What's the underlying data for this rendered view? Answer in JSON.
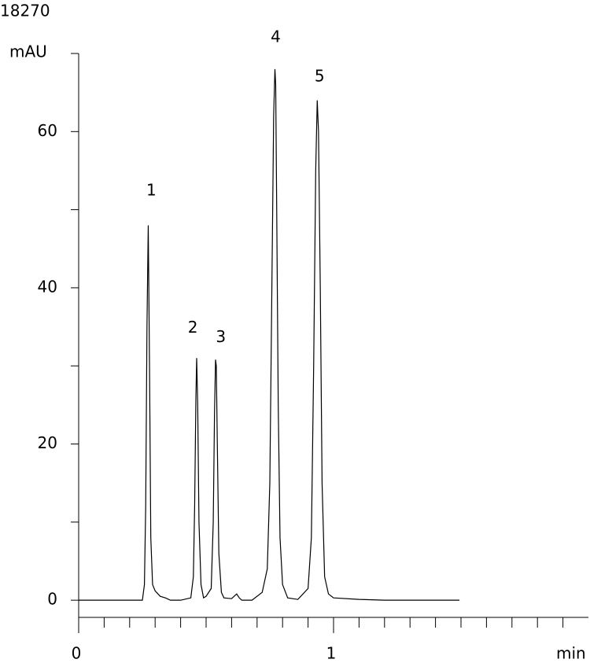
{
  "chart_data": {
    "type": "line",
    "header_code": "18270",
    "y_label": "mAU",
    "x_label": "min",
    "xlim": [
      0,
      2
    ],
    "ylim": [
      -2.2,
      70
    ],
    "xticks": [
      0,
      1
    ],
    "x_minor_ticks": [
      0.1,
      0.2,
      0.3,
      0.4,
      0.5,
      0.6,
      0.7,
      0.8,
      0.9,
      1.1,
      1.2,
      1.3,
      1.4,
      1.5,
      1.6,
      1.7,
      1.8,
      1.9
    ],
    "yticks": [
      0,
      20,
      40,
      60
    ],
    "y_minor_ticks": [
      10,
      30,
      50,
      70
    ],
    "color": "#000000",
    "x": [
      0,
      0.1,
      0.2,
      0.25,
      0.258,
      0.263,
      0.268,
      0.273,
      0.278,
      0.283,
      0.29,
      0.3,
      0.32,
      0.34,
      0.36,
      0.4,
      0.44,
      0.45,
      0.455,
      0.46,
      0.463,
      0.467,
      0.472,
      0.48,
      0.49,
      0.5,
      0.52,
      0.528,
      0.533,
      0.537,
      0.54,
      0.544,
      0.55,
      0.56,
      0.57,
      0.6,
      0.62,
      0.63,
      0.64,
      0.68,
      0.72,
      0.74,
      0.75,
      0.758,
      0.765,
      0.77,
      0.773,
      0.777,
      0.783,
      0.79,
      0.8,
      0.82,
      0.86,
      0.9,
      0.913,
      0.922,
      0.93,
      0.936,
      0.941,
      0.948,
      0.955,
      0.965,
      0.98,
      1.0,
      1.1,
      1.2,
      1.3,
      1.4,
      1.494
    ],
    "values": [
      0,
      0,
      0,
      0,
      2,
      12,
      35,
      48,
      30,
      8,
      2,
      1.2,
      0.5,
      0.3,
      0,
      0,
      0.3,
      3,
      12,
      26,
      31,
      25,
      10,
      2,
      0.3,
      0.5,
      1.5,
      10,
      24,
      30.8,
      30,
      20,
      6,
      1,
      0.3,
      0.2,
      0.8,
      0.3,
      0,
      0,
      1,
      4,
      15,
      40,
      62,
      68,
      66,
      50,
      25,
      8,
      2,
      0.3,
      0.1,
      1.5,
      8,
      30,
      55,
      64,
      60,
      40,
      15,
      3,
      0.8,
      0.3,
      0.1,
      0,
      0,
      0,
      0
    ],
    "annotations": [
      {
        "text": "1",
        "x": 0.285,
        "y": 52.4
      },
      {
        "text": "2",
        "x": 0.448,
        "y": 34.8
      },
      {
        "text": "3",
        "x": 0.558,
        "y": 33.6
      },
      {
        "text": "4",
        "x": 0.773,
        "y": 72
      },
      {
        "text": "5",
        "x": 0.945,
        "y": 67
      }
    ]
  }
}
